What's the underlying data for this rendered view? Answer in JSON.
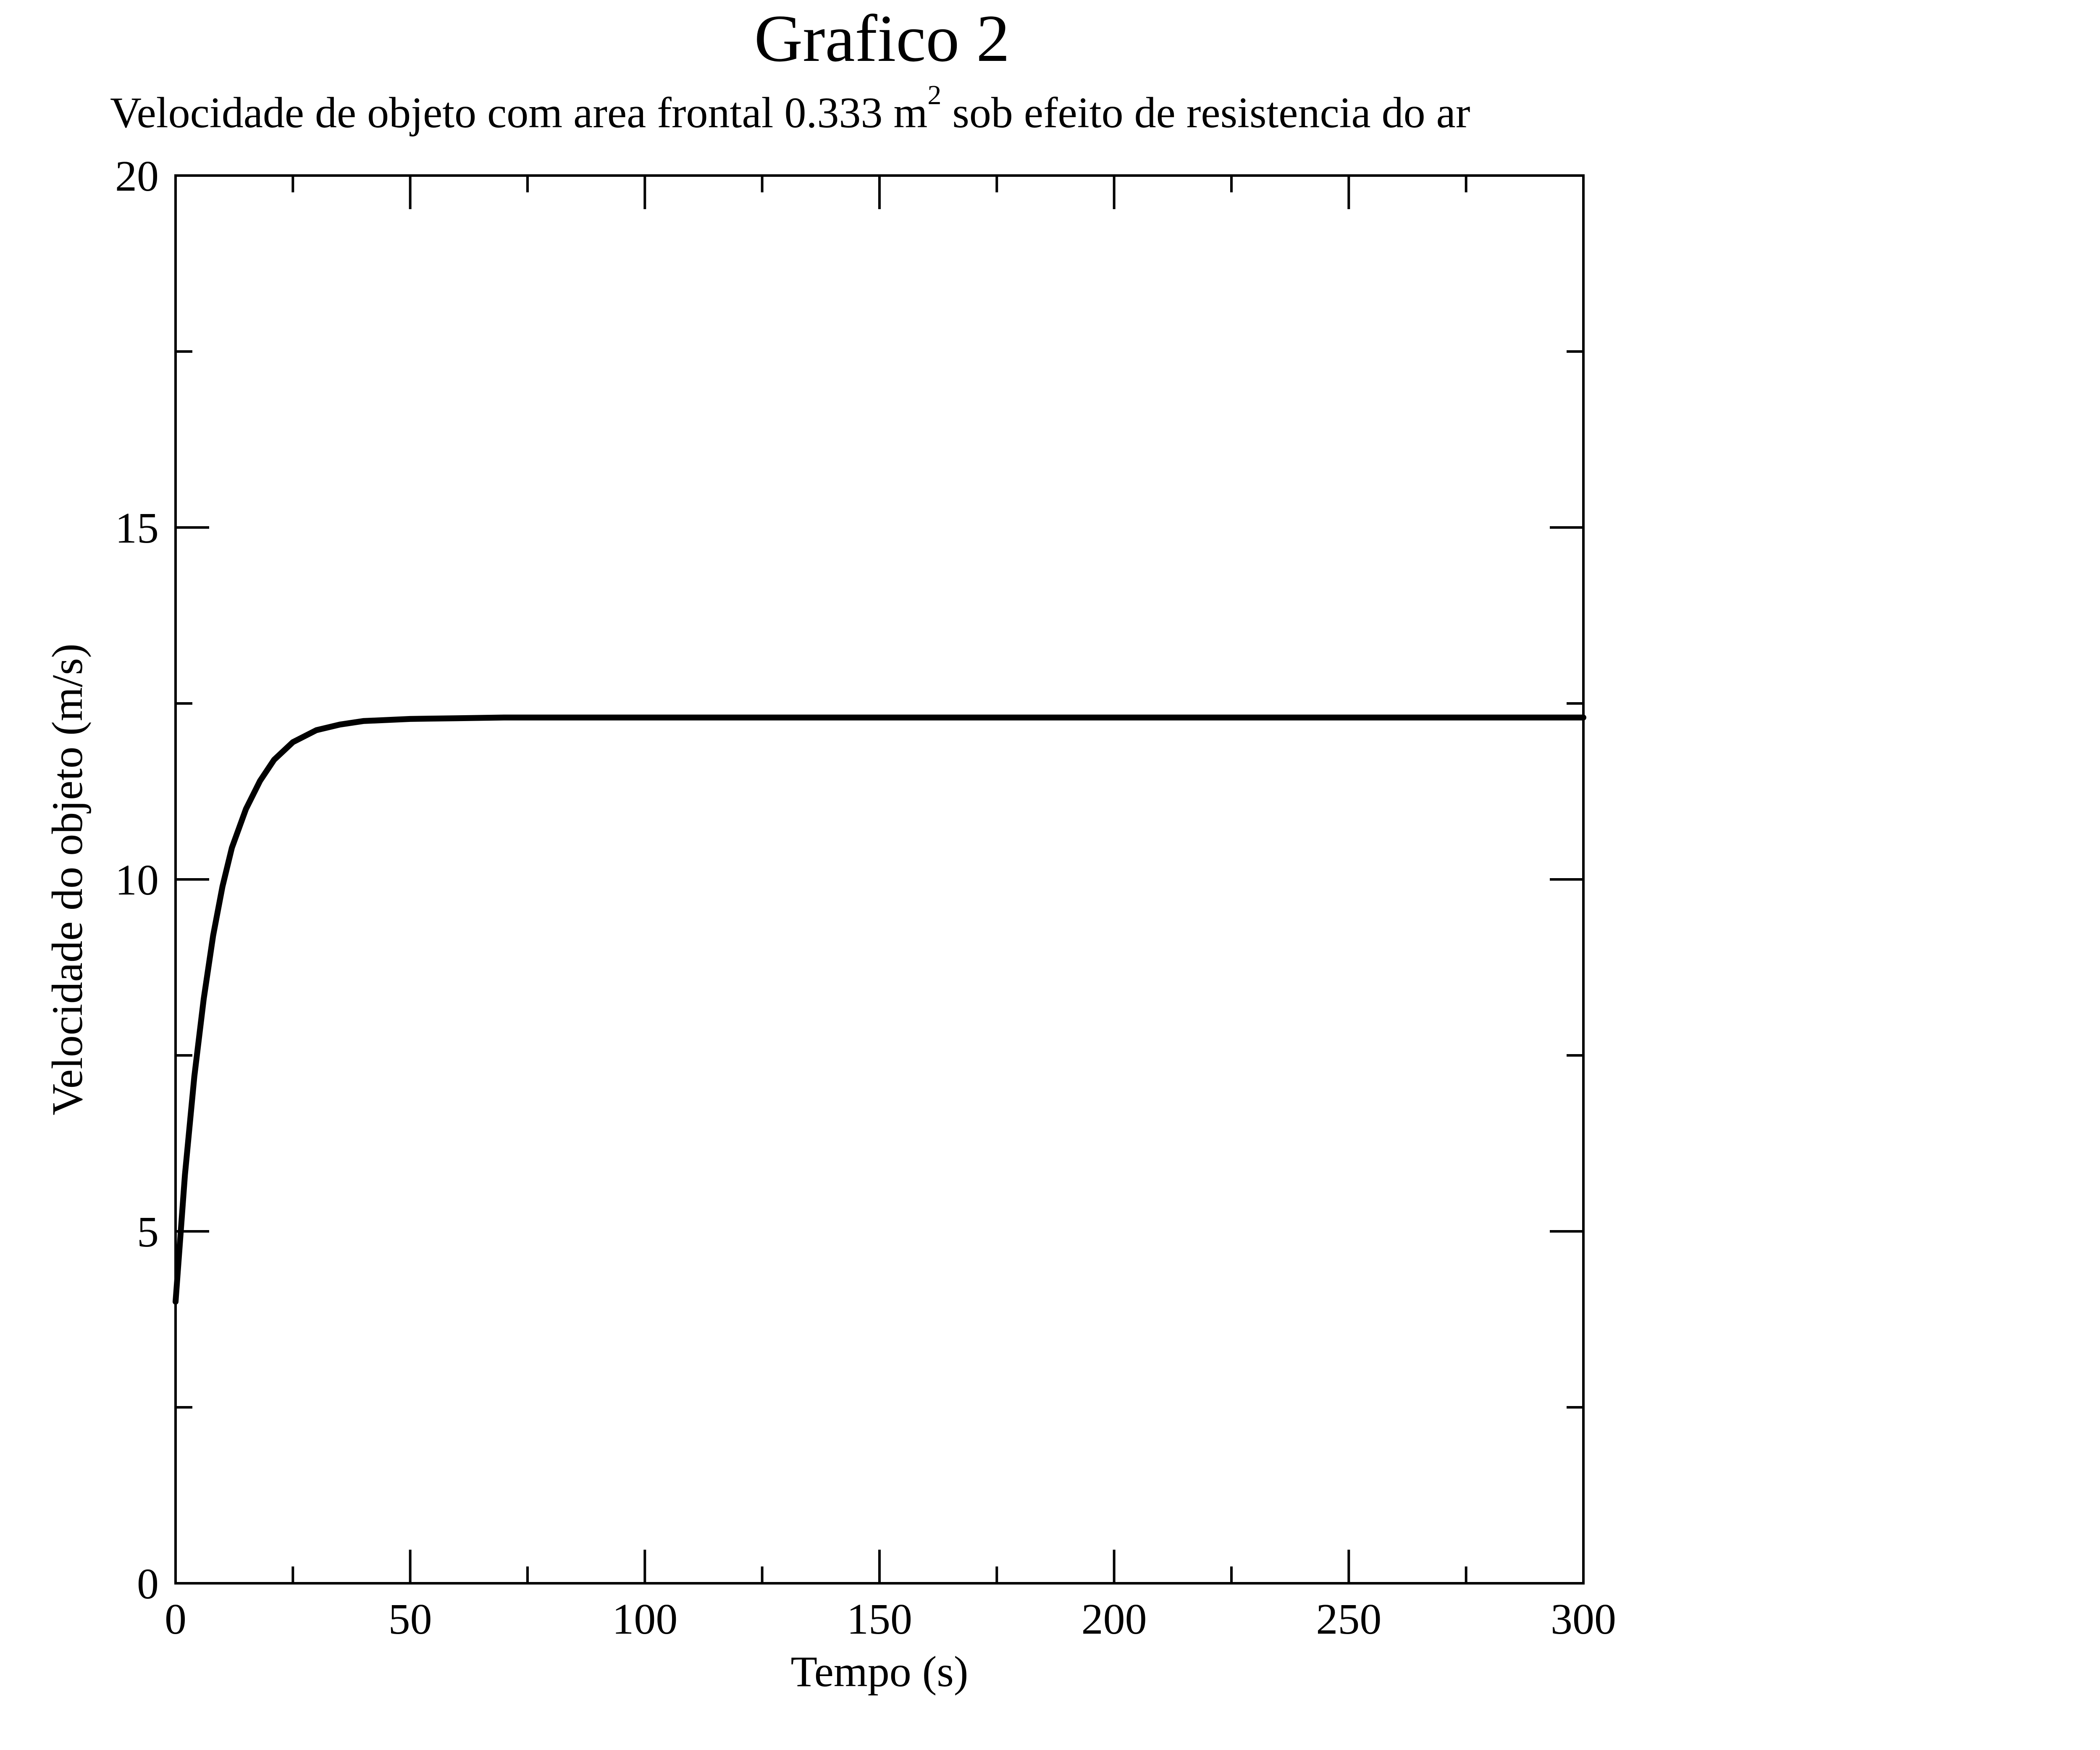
{
  "chart_data": {
    "type": "line",
    "title": "Grafico 2",
    "subtitle_before": "Velocidade de objeto com area frontal 0.333 m",
    "subtitle_superscript": "2",
    "subtitle_after": " sob efeito de resistencia do ar",
    "xlabel": "Tempo (s)",
    "ylabel": "Velocidade do objeto (m/s)",
    "xlim": [
      0,
      300
    ],
    "ylim": [
      0,
      20
    ],
    "x_ticks": [
      "0",
      "50",
      "100",
      "150",
      "200",
      "250",
      "300"
    ],
    "y_ticks": [
      "0",
      "5",
      "10",
      "15",
      "20"
    ],
    "grid": false,
    "legend": "none",
    "series": [
      {
        "color": "#000000",
        "x": [
          0,
          2,
          4,
          6,
          8,
          10,
          12,
          15,
          18,
          21,
          25,
          30,
          35,
          40,
          50,
          60,
          70,
          80,
          100,
          150,
          200,
          250,
          300
        ],
        "y": [
          4.0,
          5.8,
          7.2,
          8.3,
          9.2,
          9.9,
          10.45,
          11.0,
          11.4,
          11.7,
          11.95,
          12.12,
          12.2,
          12.25,
          12.28,
          12.29,
          12.3,
          12.3,
          12.3,
          12.3,
          12.3,
          12.3,
          12.3
        ]
      }
    ]
  }
}
